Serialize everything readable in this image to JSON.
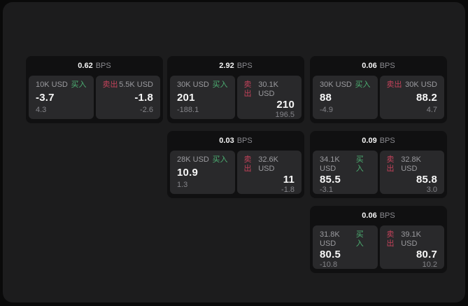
{
  "panel": {
    "unit": "BPS",
    "buy_label": "买入",
    "sell_label": "卖出"
  },
  "colors": {
    "buy_green": "#4caf72",
    "sell_red": "#c2425a",
    "panel_bg": "#1c1c1d",
    "card_bg": "#101011",
    "tile_bg": "#29292b"
  },
  "cards": [
    {
      "bps": "0.62",
      "buy": {
        "amount": "10K USD",
        "value": "-3.7",
        "delta": "4.3"
      },
      "sell": {
        "amount": "5.5K USD",
        "value": "-1.8",
        "delta": "-2.6"
      }
    },
    {
      "bps": "2.92",
      "buy": {
        "amount": "30K USD",
        "value": "201",
        "delta": "-188.1"
      },
      "sell": {
        "amount": "30.1K USD",
        "value": "210",
        "delta": "196.5"
      }
    },
    {
      "bps": "0.06",
      "buy": {
        "amount": "30K USD",
        "value": "88",
        "delta": "-4.9"
      },
      "sell": {
        "amount": "30K USD",
        "value": "88.2",
        "delta": "4.7"
      }
    },
    {
      "bps": "0.03",
      "buy": {
        "amount": "28K USD",
        "value": "10.9",
        "delta": "1.3"
      },
      "sell": {
        "amount": "32.6K USD",
        "value": "11",
        "delta": "-1.8"
      }
    },
    {
      "bps": "0.09",
      "buy": {
        "amount": "34.1K USD",
        "value": "85.5",
        "delta": "-3.1"
      },
      "sell": {
        "amount": "32.8K USD",
        "value": "85.8",
        "delta": "3.0"
      }
    },
    {
      "bps": "0.06",
      "buy": {
        "amount": "31.8K USD",
        "value": "80.5",
        "delta": "-10.8"
      },
      "sell": {
        "amount": "39.1K USD",
        "value": "80.7",
        "delta": "10.2"
      }
    }
  ]
}
